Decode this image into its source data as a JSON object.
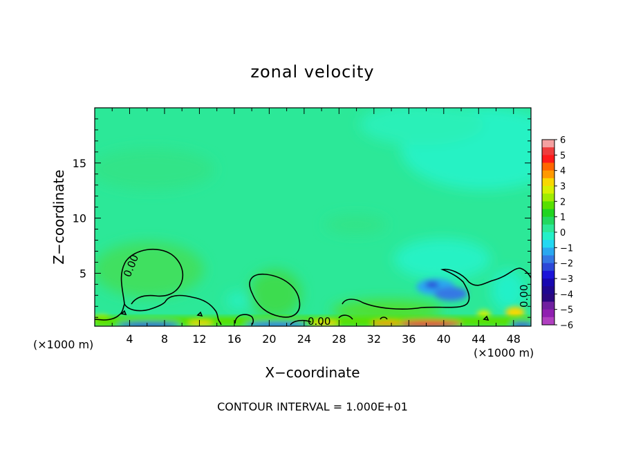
{
  "chart_data": {
    "type": "heatmap",
    "title": "zonal velocity",
    "xlabel": "X−coordinate",
    "ylabel": "Z−coordinate",
    "x_unit_note": "(×1000 m)",
    "x_ticks": [
      "4",
      "8",
      "12",
      "16",
      "20",
      "24",
      "28",
      "32",
      "36",
      "40",
      "44",
      "48"
    ],
    "y_ticks": [
      "5",
      "10",
      "15"
    ],
    "xlim": [
      0,
      50
    ],
    "ylim": [
      0.2,
      20
    ],
    "footer": "CONTOUR INTERVAL = 1.000E+01",
    "contour_label": "0.00",
    "colorbar": {
      "labels": [
        "6",
        "5",
        "4",
        "3",
        "2",
        "1",
        "0",
        "−1",
        "−2",
        "−3",
        "−4",
        "−5",
        "−6"
      ],
      "colors": [
        "#f4a0a0",
        "#ee3c3c",
        "#ff1a1a",
        "#ff6600",
        "#ff9900",
        "#f8d800",
        "#d8f000",
        "#a0ec00",
        "#58e000",
        "#20d420",
        "#22d860",
        "#2ce898",
        "#24f0c8",
        "#22d8f2",
        "#2aa8f0",
        "#3478e4",
        "#2c48d8",
        "#1c14d8",
        "#1808b0",
        "#200890",
        "#2a0880",
        "#7020a0",
        "#9020b0",
        "#b040c0"
      ]
    }
  }
}
